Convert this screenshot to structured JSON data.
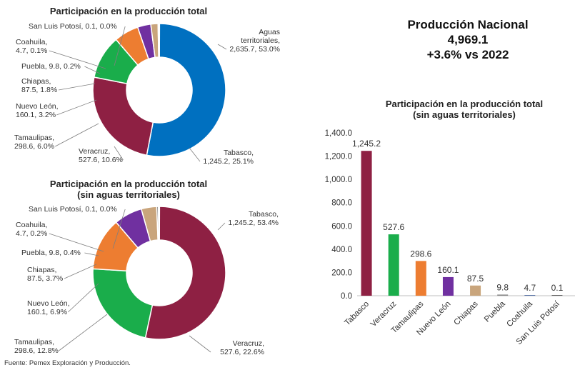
{
  "headline": {
    "title": "Producción Nacional",
    "value": "4,969.1",
    "change": "+3.6% vs 2022"
  },
  "source": "Fuente: Pemex Exploración y Producción.",
  "colors": {
    "aguas": "#0070c0",
    "tabasco": "#8e2043",
    "veracruz": "#1aad4b",
    "tamaulipas": "#ed7d31",
    "nuevo_leon": "#7030a0",
    "chiapas": "#c9a57c",
    "puebla": "#8a8a8a",
    "coahuila": "#2f4f8f",
    "slp": "#3a3a3a"
  },
  "chart_data": [
    {
      "type": "pie",
      "title": "Participación en la producción total",
      "slices": [
        {
          "label": "Aguas territoriales",
          "value": 2635.7,
          "pct": 53.0,
          "text": "Aguas territoriales, 2,635.7, 53.0%"
        },
        {
          "label": "Tabasco",
          "value": 1245.2,
          "pct": 25.1,
          "text": "Tabasco, 1,245.2, 25.1%"
        },
        {
          "label": "Veracruz",
          "value": 527.6,
          "pct": 10.6,
          "text": "Veracruz, 527.6, 10.6%"
        },
        {
          "label": "Tamaulipas",
          "value": 298.6,
          "pct": 6.0,
          "text": "Tamaulipas, 298.6, 6.0%"
        },
        {
          "label": "Nuevo León",
          "value": 160.1,
          "pct": 3.2,
          "text": "Nuevo León, 160.1, 3.2%"
        },
        {
          "label": "Chiapas",
          "value": 87.5,
          "pct": 1.8,
          "text": "Chiapas, 87.5, 1.8%"
        },
        {
          "label": "Puebla",
          "value": 9.8,
          "pct": 0.2,
          "text": "Puebla, 9.8, 0.2%"
        },
        {
          "label": "Coahuila",
          "value": 4.7,
          "pct": 0.1,
          "text": "Coahuila, 4.7, 0.1%"
        },
        {
          "label": "San Luis Potosí",
          "value": 0.1,
          "pct": 0.0,
          "text": "San Luis Potosí, 0.1, 0.0%"
        }
      ]
    },
    {
      "type": "pie",
      "title": "Participación en la producción total (sin aguas territoriales)",
      "slices": [
        {
          "label": "Tabasco",
          "value": 1245.2,
          "pct": 53.4,
          "text": "Tabasco, 1,245.2, 53.4%"
        },
        {
          "label": "Veracruz",
          "value": 527.6,
          "pct": 22.6,
          "text": "Veracruz, 527.6, 22.6%"
        },
        {
          "label": "Tamaulipas",
          "value": 298.6,
          "pct": 12.8,
          "text": "Tamaulipas, 298.6, 12.8%"
        },
        {
          "label": "Nuevo León",
          "value": 160.1,
          "pct": 6.9,
          "text": "Nuevo León, 160.1, 6.9%"
        },
        {
          "label": "Chiapas",
          "value": 87.5,
          "pct": 3.7,
          "text": "Chiapas, 87.5, 3.7%"
        },
        {
          "label": "Puebla",
          "value": 9.8,
          "pct": 0.4,
          "text": "Puebla, 9.8, 0.4%"
        },
        {
          "label": "Coahuila",
          "value": 4.7,
          "pct": 0.2,
          "text": "Coahuila, 4.7, 0.2%"
        },
        {
          "label": "San Luis Potosí",
          "value": 0.1,
          "pct": 0.0,
          "text": "San Luis Potosí, 0.1, 0.0%"
        }
      ]
    },
    {
      "type": "bar",
      "title": "Participación en la producción total (sin aguas territoriales)",
      "categories": [
        "Tabasco",
        "Veracruz",
        "Tamaulipas",
        "Nuevo León",
        "Chiapas",
        "Puebla",
        "Coahuila",
        "San Luis Potosí"
      ],
      "values": [
        1245.2,
        527.6,
        298.6,
        160.1,
        87.5,
        9.8,
        4.7,
        0.1
      ],
      "value_labels": [
        "1,245.2",
        "527.6",
        "298.6",
        "160.1",
        "87.5",
        "9.8",
        "4.7",
        "0.1"
      ],
      "yticks": [
        "0.0",
        "200.0",
        "400.0",
        "600.0",
        "800.0",
        "1,000.0",
        "1,200.0",
        "1,400.0"
      ],
      "ylim": [
        0,
        1400
      ],
      "grid": false
    }
  ]
}
